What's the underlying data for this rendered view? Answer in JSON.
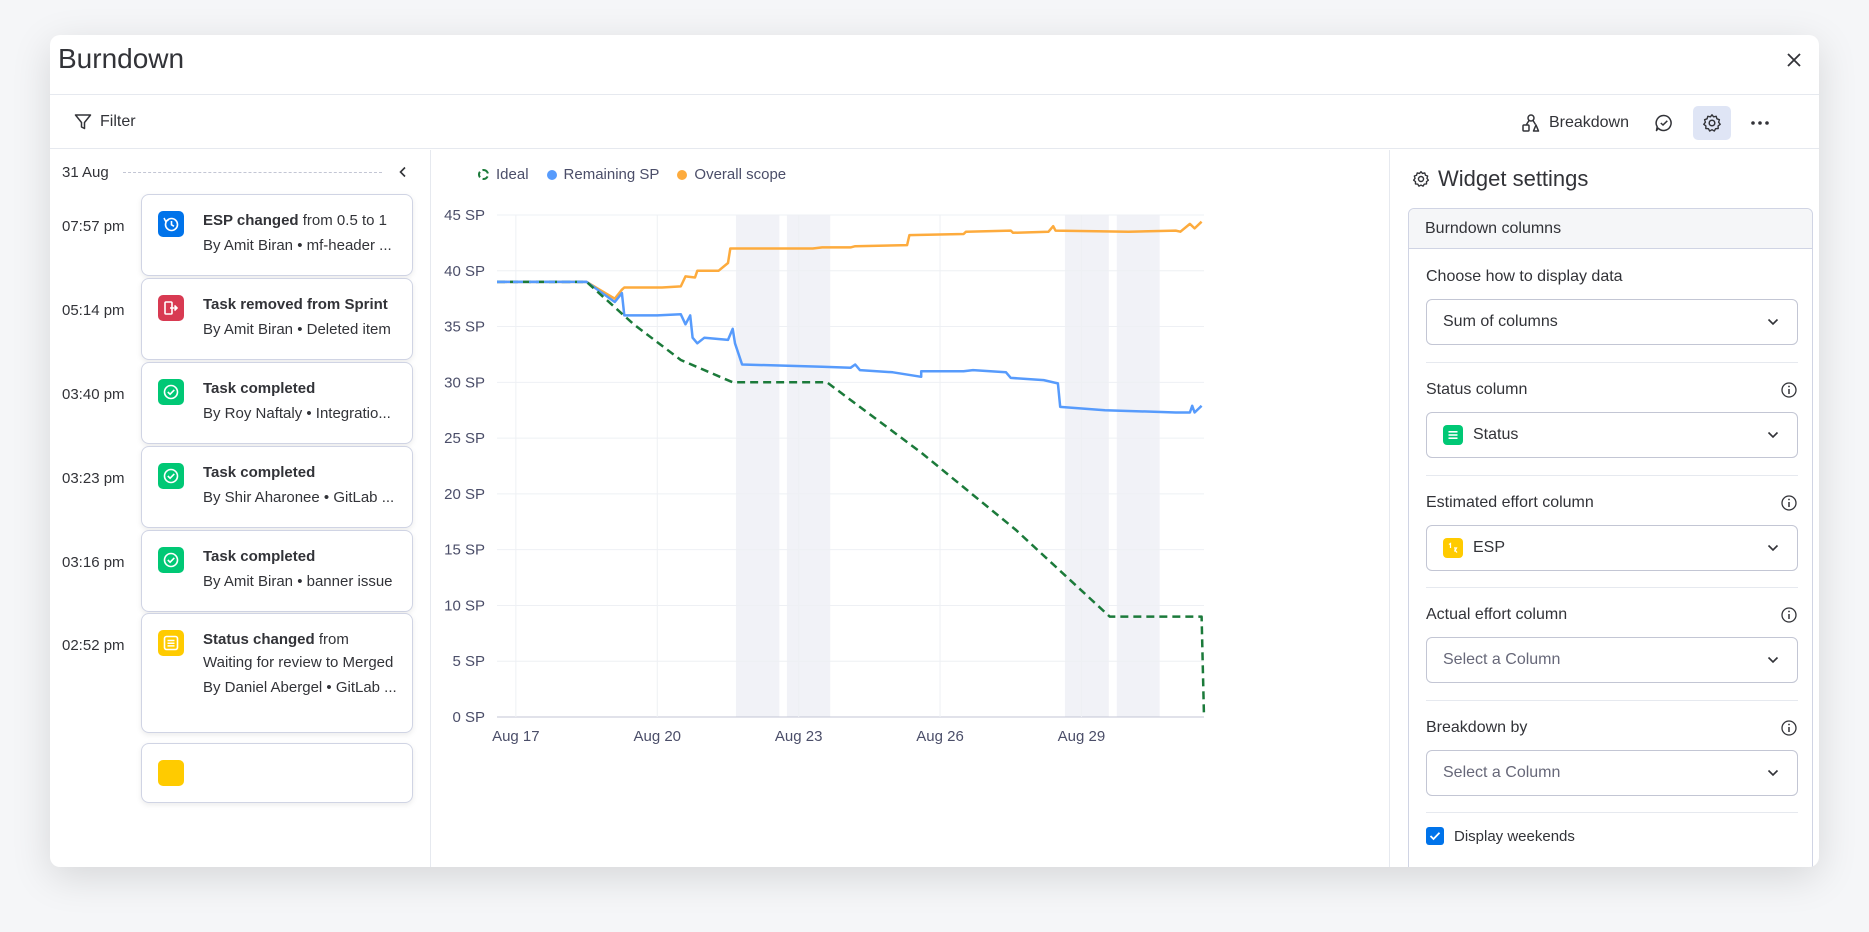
{
  "header": {
    "title": "Burndown"
  },
  "toolbar": {
    "filter_label": "Filter",
    "breakdown_label": "Breakdown"
  },
  "activity": {
    "date": "31 Aug",
    "items": [
      {
        "time": "07:57 pm",
        "title_bold": "ESP changed",
        "title_rest": " from 0.5 to 1",
        "sub": "By Amit Biran • mf-header ...",
        "icon": "history-icon",
        "color": "#0073ea"
      },
      {
        "time": "05:14 pm",
        "title_bold": "Task removed from Sprint",
        "title_rest": "",
        "sub": "By Amit Biran • Deleted item",
        "icon": "remove-icon",
        "color": "#d83a52"
      },
      {
        "time": "03:40 pm",
        "title_bold": "Task completed",
        "title_rest": "",
        "sub": "By Roy Naftaly • Integratio...",
        "icon": "check-icon",
        "color": "#00c875"
      },
      {
        "time": "03:23 pm",
        "title_bold": "Task completed",
        "title_rest": "",
        "sub": "By Shir Aharonee • GitLab ...",
        "icon": "check-icon",
        "color": "#00c875"
      },
      {
        "time": "03:16 pm",
        "title_bold": "Task completed",
        "title_rest": "",
        "sub": "By Amit Biran • banner issue",
        "icon": "check-icon",
        "color": "#00c875"
      },
      {
        "time": "02:52 pm",
        "title_bold": "Status changed",
        "title_rest": " from Waiting for review to Merged",
        "sub": "By Daniel Abergel • GitLab ...",
        "icon": "status-icon",
        "color": "#ffcb00"
      }
    ]
  },
  "chart_data": {
    "type": "line",
    "legend": [
      "Ideal",
      "Remaining SP",
      "Overall scope"
    ],
    "colors": {
      "ideal": "#1b7a3a",
      "remaining": "#579bfc",
      "scope": "#fdab3d"
    },
    "y_ticks": [
      "0 SP",
      "5 SP",
      "10 SP",
      "15 SP",
      "20 SP",
      "25 SP",
      "30 SP",
      "35 SP",
      "40 SP",
      "45 SP"
    ],
    "ylim": [
      0,
      45
    ],
    "x_ticks": [
      "Aug 17",
      "Aug 20",
      "Aug 23",
      "Aug 26",
      "Aug 29"
    ],
    "x_tick_days": [
      17,
      20,
      23,
      26,
      29
    ],
    "xlim": [
      16.6,
      31.6
    ],
    "weekend_bands": [
      [
        21.67,
        22.59
      ],
      [
        22.75,
        23.67
      ],
      [
        28.65,
        29.58
      ],
      [
        29.75,
        30.66
      ]
    ],
    "series": [
      {
        "name": "Ideal",
        "style": "dashed",
        "points": [
          [
            16.6,
            39
          ],
          [
            18.5,
            39
          ],
          [
            18.5,
            39
          ],
          [
            19.5,
            35.2
          ],
          [
            20.5,
            32
          ],
          [
            21.6,
            30
          ],
          [
            23.6,
            30
          ],
          [
            25.6,
            23.7
          ],
          [
            27.6,
            16.8
          ],
          [
            29.6,
            9
          ],
          [
            31.55,
            9
          ],
          [
            31.6,
            0
          ]
        ]
      },
      {
        "name": "Remaining SP",
        "style": "solid",
        "points": [
          [
            16.6,
            39
          ],
          [
            18.5,
            39
          ],
          [
            18.5,
            39
          ],
          [
            19.1,
            37.2
          ],
          [
            19.25,
            38
          ],
          [
            19.3,
            36
          ],
          [
            20,
            36
          ],
          [
            20.5,
            36.1
          ],
          [
            20.6,
            35.2
          ],
          [
            20.7,
            36
          ],
          [
            20.75,
            34
          ],
          [
            20.85,
            33.5
          ],
          [
            21,
            34
          ],
          [
            21.5,
            33.8
          ],
          [
            21.6,
            34.8
          ],
          [
            21.65,
            33.5
          ],
          [
            21.8,
            31.6
          ],
          [
            23.5,
            31.4
          ],
          [
            24.1,
            31.3
          ],
          [
            24.2,
            31.6
          ],
          [
            24.3,
            31.1
          ],
          [
            25,
            30.9
          ],
          [
            25.6,
            30.5
          ],
          [
            25.6,
            31
          ],
          [
            26.5,
            31
          ],
          [
            26.7,
            31.1
          ],
          [
            27.4,
            30.9
          ],
          [
            27.5,
            30.4
          ],
          [
            28.2,
            30.2
          ],
          [
            28.5,
            29.9
          ],
          [
            28.55,
            27.8
          ],
          [
            29.5,
            27.5
          ],
          [
            31,
            27.3
          ],
          [
            31.3,
            27.3
          ],
          [
            31.35,
            27.9
          ],
          [
            31.4,
            27.3
          ],
          [
            31.5,
            27.7
          ],
          [
            31.55,
            27.9
          ]
        ]
      },
      {
        "name": "Overall scope",
        "style": "solid",
        "points": [
          [
            16.6,
            39
          ],
          [
            18.5,
            39
          ],
          [
            18.5,
            39
          ],
          [
            19.1,
            37.5
          ],
          [
            19.25,
            38.3
          ],
          [
            19.3,
            38.5
          ],
          [
            20.1,
            38.5
          ],
          [
            20.5,
            38.6
          ],
          [
            20.6,
            39.5
          ],
          [
            20.8,
            39.4
          ],
          [
            20.85,
            40
          ],
          [
            21.3,
            40
          ],
          [
            21.5,
            40.7
          ],
          [
            21.55,
            42
          ],
          [
            23.3,
            42
          ],
          [
            23.5,
            42.1
          ],
          [
            24.1,
            42.1
          ],
          [
            24.2,
            42.2
          ],
          [
            25.3,
            42.3
          ],
          [
            25.35,
            43.2
          ],
          [
            26.5,
            43.3
          ],
          [
            26.55,
            43.5
          ],
          [
            27.5,
            43.6
          ],
          [
            27.55,
            43.4
          ],
          [
            28.3,
            43.5
          ],
          [
            28.4,
            44
          ],
          [
            28.45,
            43.6
          ],
          [
            30,
            43.5
          ],
          [
            31,
            43.6
          ],
          [
            31.1,
            43.5
          ],
          [
            31.3,
            44.2
          ],
          [
            31.4,
            43.8
          ],
          [
            31.55,
            44.4
          ]
        ]
      }
    ]
  },
  "settings": {
    "title": "Widget settings",
    "section": "Burndown columns",
    "display_label": "Choose how to display data",
    "display_value": "Sum of columns",
    "status_label": "Status column",
    "status_value": "Status",
    "estimated_label": "Estimated effort column",
    "estimated_value": "ESP",
    "actual_label": "Actual effort column",
    "actual_placeholder": "Select a Column",
    "breakdown_label": "Breakdown by",
    "breakdown_placeholder": "Select a Column",
    "weekends_label": "Display weekends",
    "weekends_checked": true
  }
}
